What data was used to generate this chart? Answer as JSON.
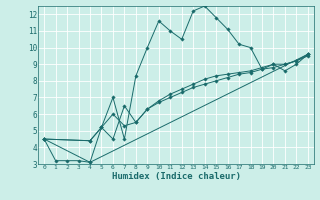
{
  "title": "",
  "xlabel": "Humidex (Indice chaleur)",
  "bg_color": "#cceee8",
  "line_color": "#1a6b6b",
  "xlim": [
    -0.5,
    23.5
  ],
  "ylim": [
    3,
    12.5
  ],
  "xticks": [
    0,
    1,
    2,
    3,
    4,
    5,
    6,
    7,
    8,
    9,
    10,
    11,
    12,
    13,
    14,
    15,
    16,
    17,
    18,
    19,
    20,
    21,
    22,
    23
  ],
  "yticks": [
    3,
    4,
    5,
    6,
    7,
    8,
    9,
    10,
    11,
    12
  ],
  "lines": [
    {
      "x": [
        0,
        1,
        2,
        3,
        4,
        5,
        6,
        7,
        8,
        9,
        10,
        11,
        12,
        13,
        14,
        15,
        16,
        17,
        18,
        19,
        20,
        21,
        22,
        23
      ],
      "y": [
        4.5,
        3.2,
        3.2,
        3.2,
        3.1,
        5.2,
        7.0,
        4.5,
        8.3,
        10.0,
        11.6,
        11.0,
        10.5,
        12.2,
        12.5,
        11.8,
        11.1,
        10.2,
        10.0,
        8.7,
        9.0,
        8.6,
        9.0,
        9.6
      ]
    },
    {
      "x": [
        0,
        4,
        5,
        6,
        7,
        8,
        9,
        10,
        11,
        12,
        13,
        14,
        15,
        16,
        17,
        18,
        19,
        20,
        21,
        22,
        23
      ],
      "y": [
        4.5,
        4.4,
        5.2,
        4.5,
        6.5,
        5.5,
        6.3,
        6.7,
        7.0,
        7.3,
        7.6,
        7.8,
        8.0,
        8.2,
        8.4,
        8.5,
        8.7,
        8.8,
        9.0,
        9.2,
        9.6
      ]
    },
    {
      "x": [
        0,
        4,
        23
      ],
      "y": [
        4.5,
        3.1,
        9.6
      ]
    },
    {
      "x": [
        0,
        4,
        5,
        6,
        7,
        8,
        9,
        10,
        11,
        12,
        13,
        14,
        15,
        16,
        17,
        18,
        19,
        20,
        21,
        22,
        23
      ],
      "y": [
        4.5,
        4.4,
        5.2,
        6.0,
        5.3,
        5.5,
        6.3,
        6.8,
        7.2,
        7.5,
        7.8,
        8.1,
        8.3,
        8.4,
        8.5,
        8.6,
        8.8,
        9.0,
        9.0,
        9.2,
        9.5
      ]
    }
  ]
}
